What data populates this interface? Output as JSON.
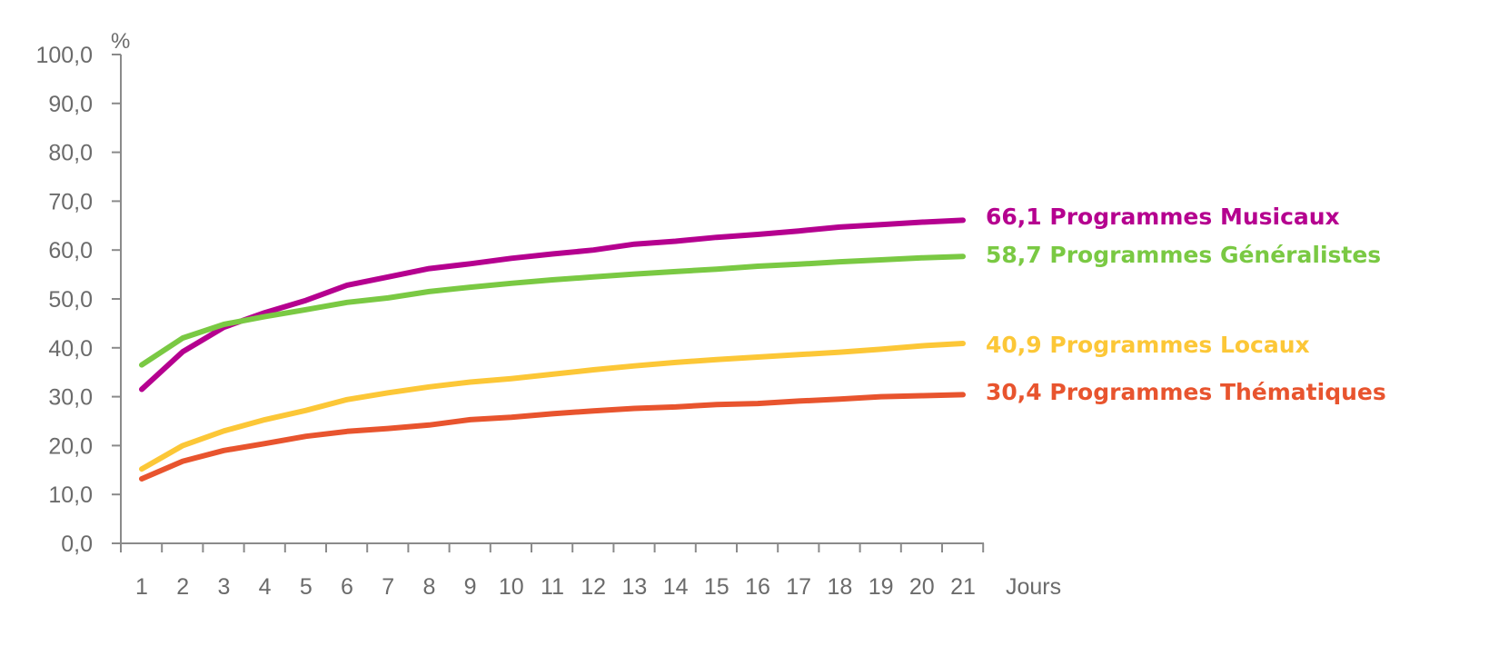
{
  "chart_data": {
    "type": "line",
    "title": "",
    "ylabel": "%",
    "xlabel": "Jours",
    "ylim": [
      0,
      100
    ],
    "y_ticks": [
      "0,0",
      "10,0",
      "20,0",
      "30,0",
      "40,0",
      "50,0",
      "60,0",
      "70,0",
      "80,0",
      "90,0",
      "100,0"
    ],
    "x": [
      "1",
      "2",
      "3",
      "4",
      "5",
      "6",
      "7",
      "8",
      "9",
      "10",
      "11",
      "12",
      "13",
      "14",
      "15",
      "16",
      "17",
      "18",
      "19",
      "20",
      "21"
    ],
    "grid": false,
    "series": [
      {
        "name": "Programmes Musicaux",
        "end_label": "66,1",
        "color": "#b5008f",
        "values": [
          31.5,
          39.2,
          44.2,
          47.2,
          49.7,
          52.8,
          54.5,
          56.2,
          57.2,
          58.3,
          59.2,
          60.0,
          61.2,
          61.8,
          62.6,
          63.2,
          63.9,
          64.7,
          65.2,
          65.7,
          66.1
        ]
      },
      {
        "name": "Programmes Généralistes",
        "end_label": "58,7",
        "color": "#7ac943",
        "values": [
          36.5,
          42.0,
          44.8,
          46.4,
          47.8,
          49.3,
          50.2,
          51.5,
          52.4,
          53.2,
          53.9,
          54.5,
          55.1,
          55.6,
          56.1,
          56.7,
          57.1,
          57.6,
          58.0,
          58.4,
          58.7
        ]
      },
      {
        "name": "Programmes Locaux",
        "end_label": "40,9",
        "color": "#fcc737",
        "values": [
          15.2,
          20.0,
          23.0,
          25.3,
          27.2,
          29.4,
          30.8,
          32.0,
          33.0,
          33.7,
          34.6,
          35.5,
          36.3,
          37.0,
          37.6,
          38.1,
          38.6,
          39.1,
          39.7,
          40.4,
          40.9
        ]
      },
      {
        "name": "Programmes Thématiques",
        "end_label": "30,4",
        "color": "#e8542e",
        "values": [
          13.2,
          16.8,
          19.0,
          20.4,
          21.9,
          22.9,
          23.5,
          24.2,
          25.3,
          25.8,
          26.5,
          27.1,
          27.6,
          27.9,
          28.4,
          28.6,
          29.1,
          29.5,
          30.0,
          30.2,
          30.4
        ]
      }
    ]
  }
}
